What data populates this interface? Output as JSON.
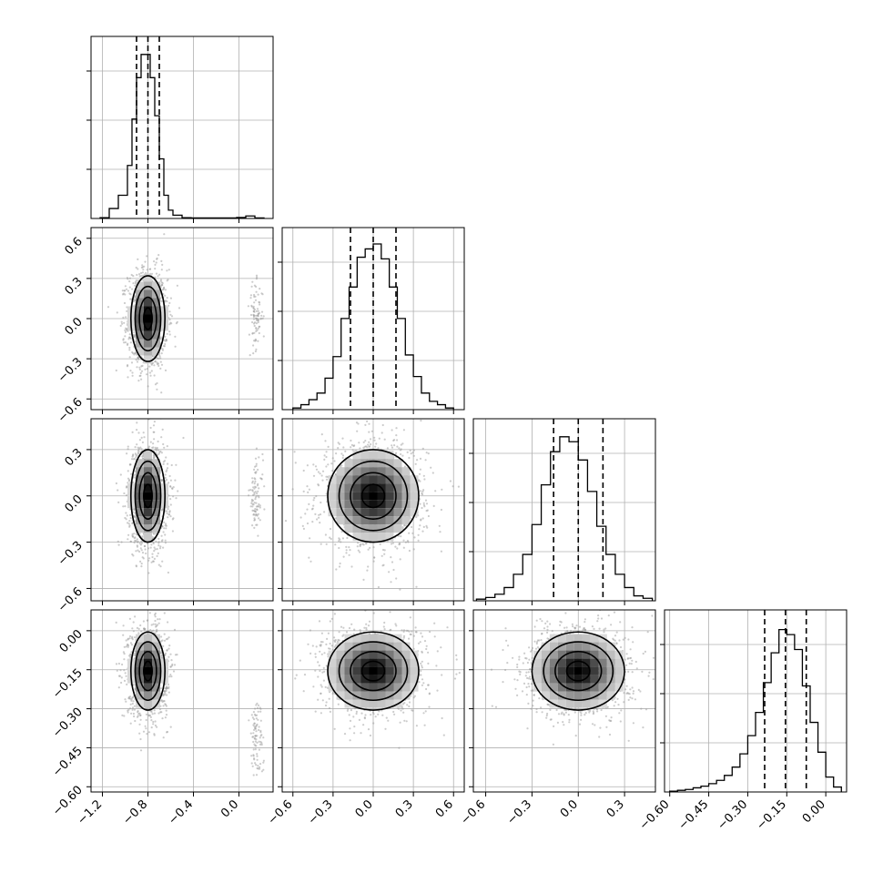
{
  "chart_data": {
    "type": "corner",
    "grid": true,
    "parameters": [
      {
        "range": [
          -1.3,
          0.3
        ],
        "ticks": [
          -1.2,
          -0.8,
          -0.4,
          0.0
        ],
        "tick_labels": [
          "−1.2",
          "−0.8",
          "−0.4",
          "0.0"
        ],
        "median": -0.8,
        "quantiles": [
          -0.9,
          -0.8,
          -0.7
        ],
        "histogram": {
          "bin_edges": [
            -1.22,
            -1.14,
            -1.06,
            -0.98,
            -0.94,
            -0.9,
            -0.86,
            -0.82,
            -0.78,
            -0.74,
            -0.7,
            -0.66,
            -0.62,
            -0.58,
            -0.5,
            -0.42,
            -0.34,
            -0.26,
            -0.18,
            -0.1,
            -0.02,
            0.06,
            0.14,
            0.22
          ],
          "counts": [
            0.005,
            0.06,
            0.14,
            0.32,
            0.6,
            0.85,
            0.99,
            0.99,
            0.85,
            0.62,
            0.36,
            0.14,
            0.05,
            0.02,
            0.005,
            0.003,
            0.003,
            0.003,
            0.003,
            0.003,
            0.006,
            0.015,
            0.003
          ]
        }
      },
      {
        "range": [
          -0.68,
          0.68
        ],
        "ticks": [
          -0.6,
          -0.3,
          0.0,
          0.3,
          0.6
        ],
        "tick_labels": [
          "−0.6",
          "−0.3",
          "0.0",
          "0.3",
          "0.6"
        ],
        "median": 0.0,
        "quantiles": [
          -0.17,
          0.0,
          0.17
        ],
        "histogram": {
          "bin_edges": [
            -0.6,
            -0.54,
            -0.48,
            -0.42,
            -0.36,
            -0.3,
            -0.24,
            -0.18,
            -0.12,
            -0.06,
            0.0,
            0.06,
            0.12,
            0.18,
            0.24,
            0.3,
            0.36,
            0.42,
            0.48,
            0.54,
            0.6
          ],
          "counts": [
            0.01,
            0.03,
            0.06,
            0.1,
            0.19,
            0.32,
            0.55,
            0.74,
            0.92,
            0.97,
            1.0,
            0.91,
            0.74,
            0.55,
            0.33,
            0.2,
            0.1,
            0.05,
            0.03,
            0.01
          ]
        }
      },
      {
        "range": [
          -0.68,
          0.5
        ],
        "ticks": [
          -0.6,
          -0.3,
          0.0,
          0.3
        ],
        "tick_labels": [
          "−0.6",
          "−0.3",
          "0.0",
          "0.3"
        ],
        "median": 0.0,
        "quantiles": [
          -0.16,
          0.0,
          0.16
        ],
        "histogram": {
          "bin_edges": [
            -0.66,
            -0.6,
            -0.54,
            -0.48,
            -0.42,
            -0.36,
            -0.3,
            -0.24,
            -0.18,
            -0.12,
            -0.06,
            0.0,
            0.06,
            0.12,
            0.18,
            0.24,
            0.3,
            0.36,
            0.42,
            0.48
          ],
          "counts": [
            0.01,
            0.02,
            0.04,
            0.08,
            0.16,
            0.28,
            0.46,
            0.7,
            0.9,
            0.99,
            0.96,
            0.85,
            0.66,
            0.45,
            0.28,
            0.16,
            0.08,
            0.03,
            0.015
          ]
        }
      },
      {
        "range": [
          -0.62,
          0.08
        ],
        "ticks": [
          -0.6,
          -0.45,
          -0.3,
          -0.15,
          0.0
        ],
        "tick_labels": [
          "−0.60",
          "−0.45",
          "−0.30",
          "−0.15",
          "0.00"
        ],
        "median": -0.155,
        "quantiles": [
          -0.235,
          -0.155,
          -0.075
        ],
        "histogram": {
          "bin_edges": [
            -0.6,
            -0.57,
            -0.54,
            -0.51,
            -0.48,
            -0.45,
            -0.42,
            -0.39,
            -0.36,
            -0.33,
            -0.3,
            -0.27,
            -0.24,
            -0.21,
            -0.18,
            -0.15,
            -0.12,
            -0.09,
            -0.06,
            -0.03,
            0.0,
            0.03,
            0.06
          ],
          "counts": [
            0.005,
            0.01,
            0.015,
            0.025,
            0.035,
            0.05,
            0.07,
            0.1,
            0.15,
            0.23,
            0.34,
            0.48,
            0.66,
            0.84,
            0.98,
            0.95,
            0.86,
            0.64,
            0.42,
            0.24,
            0.09,
            0.03
          ]
        }
      }
    ],
    "joint_distributions": [
      {
        "x_param": 0,
        "y_param": 1,
        "center": [
          -0.8,
          0.0
        ],
        "sigma": [
          0.075,
          0.16
        ],
        "outlier_cluster": {
          "center": [
            0.15,
            0.02
          ],
          "sigma": [
            0.03,
            0.12
          ]
        }
      },
      {
        "x_param": 0,
        "y_param": 2,
        "center": [
          -0.8,
          0.0
        ],
        "sigma": [
          0.075,
          0.15
        ],
        "outlier_cluster": {
          "center": [
            0.15,
            0.0
          ],
          "sigma": [
            0.03,
            0.12
          ]
        }
      },
      {
        "x_param": 1,
        "y_param": 2,
        "center": [
          0.0,
          0.0
        ],
        "sigma": [
          0.17,
          0.15
        ]
      },
      {
        "x_param": 0,
        "y_param": 3,
        "center": [
          -0.8,
          -0.155
        ],
        "sigma": [
          0.075,
          0.075
        ],
        "outlier_cluster": {
          "center": [
            0.15,
            -0.4
          ],
          "sigma": [
            0.03,
            0.08
          ]
        }
      },
      {
        "x_param": 1,
        "y_param": 3,
        "center": [
          0.0,
          -0.155
        ],
        "sigma": [
          0.17,
          0.075
        ]
      },
      {
        "x_param": 2,
        "y_param": 3,
        "center": [
          0.0,
          -0.155
        ],
        "sigma": [
          0.15,
          0.075
        ]
      }
    ],
    "contour_levels_sigma": [
      0.5,
      1.0,
      1.5,
      2.0
    ],
    "colors": {
      "axes": "#000000",
      "grid": "#b0b0b0",
      "points": "#9a9a9a",
      "density": "#000000"
    }
  }
}
